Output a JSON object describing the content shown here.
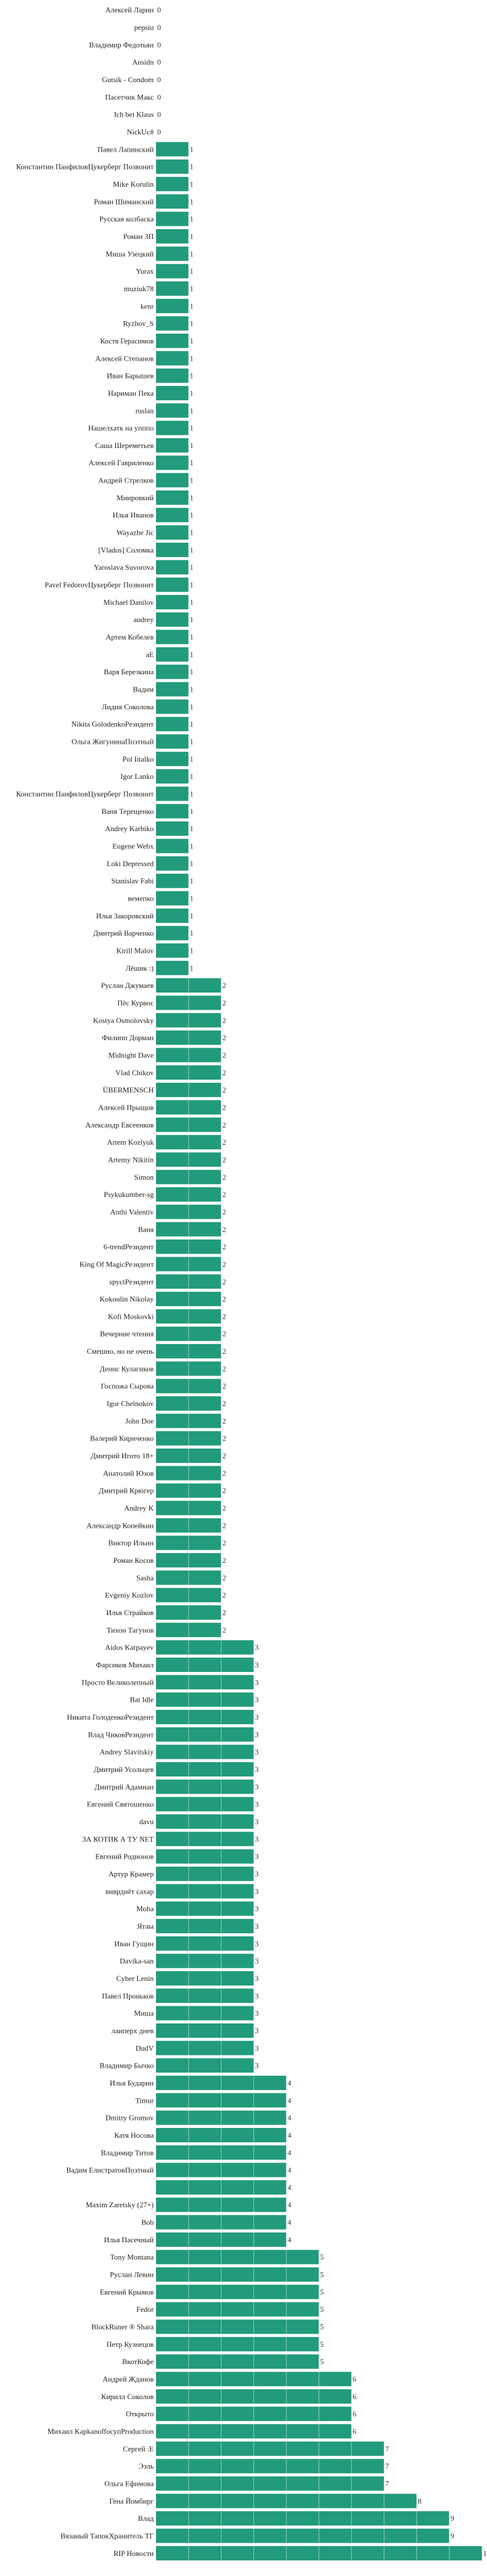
{
  "chart_data": {
    "type": "bar",
    "orientation": "horizontal",
    "title": "",
    "xlabel": "",
    "ylabel": "",
    "xlim": [
      0,
      10
    ],
    "grid": true,
    "bar_color": "#219b7b",
    "categories": [
      "Алексей Ларин",
      "pepsiu",
      "Владимир Федотьян",
      "Ansidn",
      "Gutsik - Condom",
      "Пасетчик Макс",
      "Ich bei Klaus",
      "NickUc#",
      "Павел Лапинский",
      "Константин ПанфиловЦукерберг Позвонит",
      "Mike Korulin",
      "Роман Шиманский",
      "Русская колбаска",
      "Роман ЗП",
      "Миша Узецкий",
      "Yurax",
      "muziuk78",
      "kenr",
      "Ryzhov_S",
      "Костя Герасимов",
      "Алексей Степанов",
      "Иван Барышев",
      "Нариман Пека",
      "ruslan",
      "Нашелхатк на упппо",
      "Саша Шереметьев",
      "Алексей Гавриленко",
      "Андрей Стрелков",
      "Миировкий",
      "Илья Иванов",
      "Wayazhe Jic",
      "[Vlados] Соломка",
      "Yaroslava Suvorova",
      "Pavel FedorovЦукерберг Позвонит",
      "Michael Danilov",
      "audrey",
      "Артем Кобелев",
      "аЕ",
      "Варя Березкина",
      "Вадим",
      "Лидия Соколова",
      "Nikita GolodenkoРезидент",
      "Ольга ЖигунинаПоэтный",
      "Pol Iitalko",
      "Igor Lanko",
      "Константин ПанфиловЦукерберг Позвонит",
      "Ваня Терещенко",
      "Andrey Karbiko",
      "Eugene Webx",
      "Loki Depressed",
      "Stanislav Fabi",
      "вемепко",
      "Илья Закоровский",
      "Дмитрий Варченко",
      "Kirill Malov",
      "Лёшик :)",
      "Руслан Джумаев",
      "Пёс Курвос",
      "Kostya Osmolovsky",
      "Филипп Дорман",
      "Midnight Dave",
      "Vlad Chikov",
      "ÜBERMENSCH",
      "Алексей Прыщов",
      "Александр Евсеенков",
      "Artem Kozlyuk",
      "Artemy Nikitin",
      "Simon",
      "Psykukumber-sg",
      "Anthi Valentiv",
      "Ваня",
      "6-trendРезидент",
      "King Of MagicРезидент",
      "spyctРезидент",
      "Kokoulin Nikolay",
      "Kofi Moskovki",
      "Вечерние чтения",
      "Смешно, но не очень",
      "Денис Кулагиков",
      "Госпожа Сырова",
      "Igor Chelnokov",
      "John Doe",
      "Валерий Кириченко",
      "Дмитрий Игото 18+",
      "Анатолий Юзов",
      "Дмитрий Крюгер",
      "Andrey K",
      "Александр Копейкин",
      "Виктор Ильин",
      "Роман Косов",
      "Sasha",
      "Evgeniy Kozlov",
      "Илья Страйков",
      "Тихон Тагунов",
      "Aidos Karpayev",
      "Фарсиков Михаил",
      "Просто Великолепный",
      "Bat Idle",
      "Никита ГолоденкоРезидент",
      "Влад ЧиковРезидент",
      "Andrey Slavitskiy",
      "Дмитрий Усольцев",
      "Дмитрий Адамиан",
      "Евгений Святошенко",
      "davu",
      "ЗА КОТИК А ТУ NET",
      "Евгений Родионов",
      "Артур Крамер",
      "виврдиёт сахар",
      "Moha",
      "Ятаы",
      "Иван Гущин",
      "Davika-san",
      "Cyber Lenin",
      "Павел Проньков",
      "Миша",
      "лаиперх днев",
      "DudV",
      "Владимир Бычко",
      "Илья Бударин",
      "Timur",
      "Dmitry Gromov",
      "Катя Носова",
      "Владимир Титов",
      "Вадим ЕлистратовПоэтный",
      "",
      "Maxim Zaretsky (27+)",
      "Bob",
      "Илья Пасечный",
      "Tony Montana",
      "Руслан Левин",
      "Евгений Крымов",
      "Fedor",
      "BlockRuner ® Shara",
      "Петр Кузнецов",
      "ВкотКофе",
      "Андрей Жданов",
      "Кирилл Соколов",
      "Открыто",
      "Михаил KapkanoffoсупProduction",
      "Сергей :Е",
      "Ээль",
      "Ольга Ефимова",
      "Гена Йомбирг",
      "Влад",
      "Вязаный ТапокХранитель ТГ",
      "RIP Новости"
    ],
    "values": [
      0,
      0,
      0,
      0,
      0,
      0,
      0,
      0,
      1,
      1,
      1,
      1,
      1,
      1,
      1,
      1,
      1,
      1,
      1,
      1,
      1,
      1,
      1,
      1,
      1,
      1,
      1,
      1,
      1,
      1,
      1,
      1,
      1,
      1,
      1,
      1,
      1,
      1,
      1,
      1,
      1,
      1,
      1,
      1,
      1,
      1,
      1,
      1,
      1,
      1,
      1,
      1,
      1,
      1,
      1,
      1,
      2,
      2,
      2,
      2,
      2,
      2,
      2,
      2,
      2,
      2,
      2,
      2,
      2,
      2,
      2,
      2,
      2,
      2,
      2,
      2,
      2,
      2,
      2,
      2,
      2,
      2,
      2,
      2,
      2,
      2,
      2,
      2,
      2,
      2,
      2,
      2,
      2,
      2,
      3,
      3,
      3,
      3,
      3,
      3,
      3,
      3,
      3,
      3,
      3,
      3,
      3,
      3,
      3,
      3,
      3,
      3,
      3,
      3,
      3,
      3,
      3,
      3,
      3,
      4,
      4,
      4,
      4,
      4,
      4,
      4,
      4,
      4,
      4,
      5,
      5,
      5,
      5,
      5,
      5,
      5,
      6,
      6,
      6,
      6,
      7,
      7,
      7,
      8,
      9,
      9,
      10
    ]
  }
}
